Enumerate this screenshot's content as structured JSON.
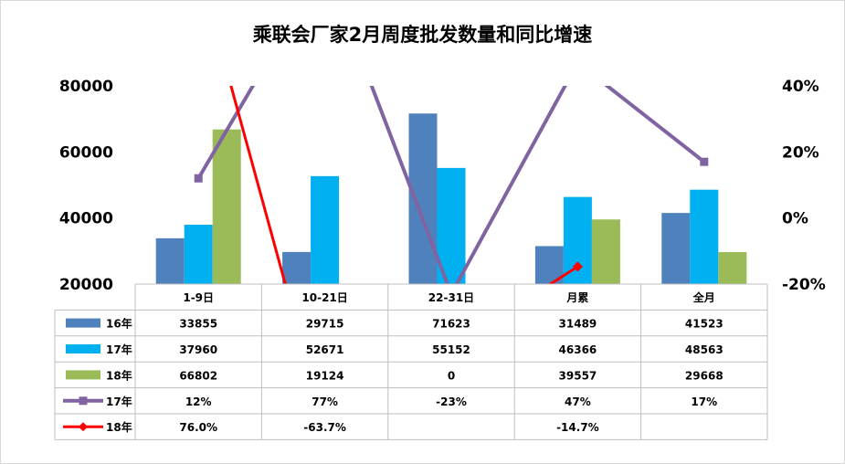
{
  "chart_data": {
    "type": "bar",
    "title": "乘联会厂家2月周度批发数量和同比增速",
    "categories": [
      "1-9日",
      "10-21日",
      "22-31日",
      "月累",
      "全月"
    ],
    "ylim": [
      20000,
      80000
    ],
    "yticks": [
      "80000",
      "60000",
      "40000",
      "20000"
    ],
    "ylim_right": [
      -20,
      40
    ],
    "yticks_right": [
      "40%",
      "20%",
      "0%",
      "-20%"
    ],
    "series": [
      {
        "name": "16年",
        "type": "bar",
        "color": "#4f81bd",
        "values": [
          33855,
          29715,
          71623,
          31489,
          41523
        ],
        "labels": [
          "33855",
          "29715",
          "71623",
          "31489",
          "41523"
        ]
      },
      {
        "name": "17年",
        "type": "bar",
        "color": "#00b0f0",
        "values": [
          37960,
          52671,
          55152,
          46366,
          48563
        ],
        "labels": [
          "37960",
          "52671",
          "55152",
          "46366",
          "48563"
        ]
      },
      {
        "name": "18年",
        "type": "bar",
        "color": "#9bbb59",
        "values": [
          66802,
          19124,
          0,
          39557,
          29668
        ],
        "labels": [
          "66802",
          "19124",
          "0",
          "39557",
          "29668"
        ]
      },
      {
        "name": "17年",
        "type": "line",
        "axis": "right",
        "color": "#8064a2",
        "marker": "square",
        "values": [
          12,
          77,
          -23,
          47,
          17
        ],
        "labels": [
          "12%",
          "77%",
          "-23%",
          "47%",
          "17%"
        ]
      },
      {
        "name": "18年",
        "type": "line",
        "axis": "right",
        "color": "#ff0000",
        "marker": "diamond",
        "values": [
          76.0,
          -63.7,
          null,
          -14.7,
          null
        ],
        "labels": [
          "76.0%",
          "-63.7%",
          "",
          "-14.7%",
          ""
        ]
      }
    ]
  }
}
